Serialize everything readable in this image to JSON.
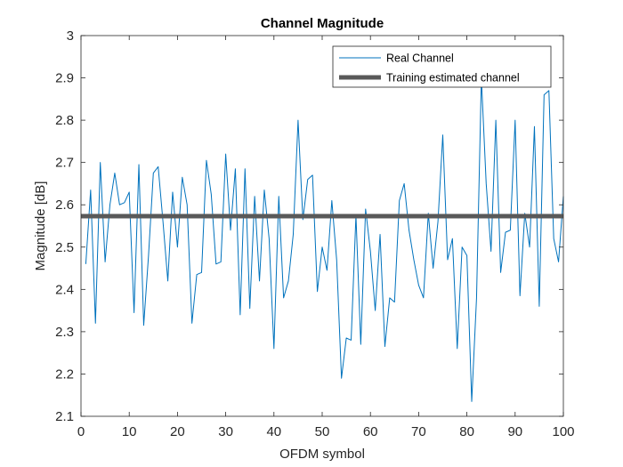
{
  "chart_data": {
    "type": "line",
    "title": "Channel Magnitude",
    "xlabel": "OFDM symbol",
    "ylabel": "Magnitude [dB]",
    "xlim": [
      0,
      100
    ],
    "ylim": [
      2.1,
      3.0
    ],
    "xticks": [
      0,
      10,
      20,
      30,
      40,
      50,
      60,
      70,
      80,
      90,
      100
    ],
    "yticks": [
      2.1,
      2.2,
      2.3,
      2.4,
      2.5,
      2.6,
      2.7,
      2.8,
      2.9,
      3.0
    ],
    "xtick_labels": [
      "0",
      "10",
      "20",
      "30",
      "40",
      "50",
      "60",
      "70",
      "80",
      "90",
      "100"
    ],
    "ytick_labels": [
      "2.1",
      "2.2",
      "2.3",
      "2.4",
      "2.5",
      "2.6",
      "2.7",
      "2.8",
      "2.9",
      "3"
    ],
    "grid": false,
    "legend_position": "top-right",
    "series": [
      {
        "name": "Real Channel",
        "color": "#0072BD",
        "x": [
          1,
          2,
          3,
          4,
          5,
          6,
          7,
          8,
          9,
          10,
          11,
          12,
          13,
          14,
          15,
          16,
          17,
          18,
          19,
          20,
          21,
          22,
          23,
          24,
          25,
          26,
          27,
          28,
          29,
          30,
          31,
          32,
          33,
          34,
          35,
          36,
          37,
          38,
          39,
          40,
          41,
          42,
          43,
          44,
          45,
          46,
          47,
          48,
          49,
          50,
          51,
          52,
          53,
          54,
          55,
          56,
          57,
          58,
          59,
          60,
          61,
          62,
          63,
          64,
          65,
          66,
          67,
          68,
          69,
          70,
          71,
          72,
          73,
          74,
          75,
          76,
          77,
          78,
          79,
          80,
          81,
          82,
          83,
          84,
          85,
          86,
          87,
          88,
          89,
          90,
          91,
          92,
          93,
          94,
          95,
          96,
          97,
          98,
          99,
          100
        ],
        "values": [
          2.46,
          2.635,
          2.32,
          2.7,
          2.465,
          2.6,
          2.675,
          2.6,
          2.605,
          2.63,
          2.345,
          2.695,
          2.315,
          2.48,
          2.675,
          2.69,
          2.56,
          2.42,
          2.63,
          2.5,
          2.665,
          2.6,
          2.32,
          2.435,
          2.44,
          2.705,
          2.625,
          2.46,
          2.465,
          2.72,
          2.54,
          2.685,
          2.34,
          2.685,
          2.355,
          2.62,
          2.42,
          2.635,
          2.52,
          2.26,
          2.62,
          2.38,
          2.42,
          2.53,
          2.8,
          2.565,
          2.66,
          2.67,
          2.395,
          2.5,
          2.445,
          2.61,
          2.47,
          2.19,
          2.285,
          2.28,
          2.575,
          2.27,
          2.59,
          2.49,
          2.35,
          2.53,
          2.265,
          2.38,
          2.37,
          2.61,
          2.65,
          2.54,
          2.47,
          2.41,
          2.38,
          2.58,
          2.45,
          2.56,
          2.765,
          2.47,
          2.52,
          2.26,
          2.5,
          2.48,
          2.135,
          2.38,
          2.9,
          2.65,
          2.49,
          2.8,
          2.44,
          2.535,
          2.54,
          2.8,
          2.385,
          2.58,
          2.5,
          2.785,
          2.36,
          2.86,
          2.87,
          2.52,
          2.465,
          2.62
        ]
      },
      {
        "name": "Training estimated channel",
        "color": "#595959",
        "x": [
          0,
          100
        ],
        "values": [
          2.573,
          2.573
        ]
      }
    ]
  }
}
